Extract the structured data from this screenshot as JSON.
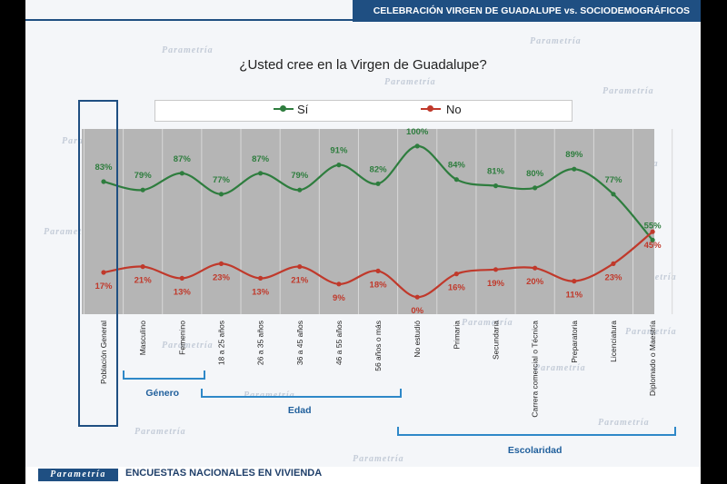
{
  "header": {
    "title": "CELEBRACIÓN VIRGEN DE GUADALUPE vs. SOCIODEMOGRÁFICOS"
  },
  "footer": {
    "brand": "Parametría",
    "text": "ENCUESTAS NACIONALES EN VIVIENDA"
  },
  "watermark": "Parametría",
  "colors": {
    "si": "#2e7d3e",
    "no": "#c0392b",
    "header": "#1f4f82",
    "bracket": "#2e88c8",
    "plot_bg": "#b5b5b5"
  },
  "chart_data": {
    "type": "line",
    "title": "¿Usted cree en la Virgen de Guadalupe?",
    "categories": [
      "Población General",
      "Masculino",
      "Femenino",
      "18 a 25 años",
      "26 a 35 años",
      "36 a 45 años",
      "46 a 55 años",
      "56 años o más",
      "No estudió",
      "Primaria",
      "Secundaria",
      "Carrera comercial o Técnica",
      "Preparatoria",
      "Licenciatura",
      "Diplomado o Maestría"
    ],
    "series": [
      {
        "name": "Sí",
        "values": [
          83,
          79,
          87,
          77,
          87,
          79,
          91,
          82,
          100,
          84,
          81,
          80,
          89,
          77,
          55
        ]
      },
      {
        "name": "No",
        "values": [
          17,
          21,
          13,
          23,
          13,
          21,
          9,
          18,
          0,
          16,
          19,
          20,
          11,
          23,
          45
        ]
      }
    ],
    "value_suffix": "%",
    "legend_position": "top",
    "groups": [
      {
        "label": "Género",
        "start": 1,
        "end": 2
      },
      {
        "label": "Edad",
        "start": 3,
        "end": 7
      },
      {
        "label": "Escolaridad",
        "start": 8,
        "end": 14
      }
    ],
    "highlighted_category": "Población General"
  }
}
